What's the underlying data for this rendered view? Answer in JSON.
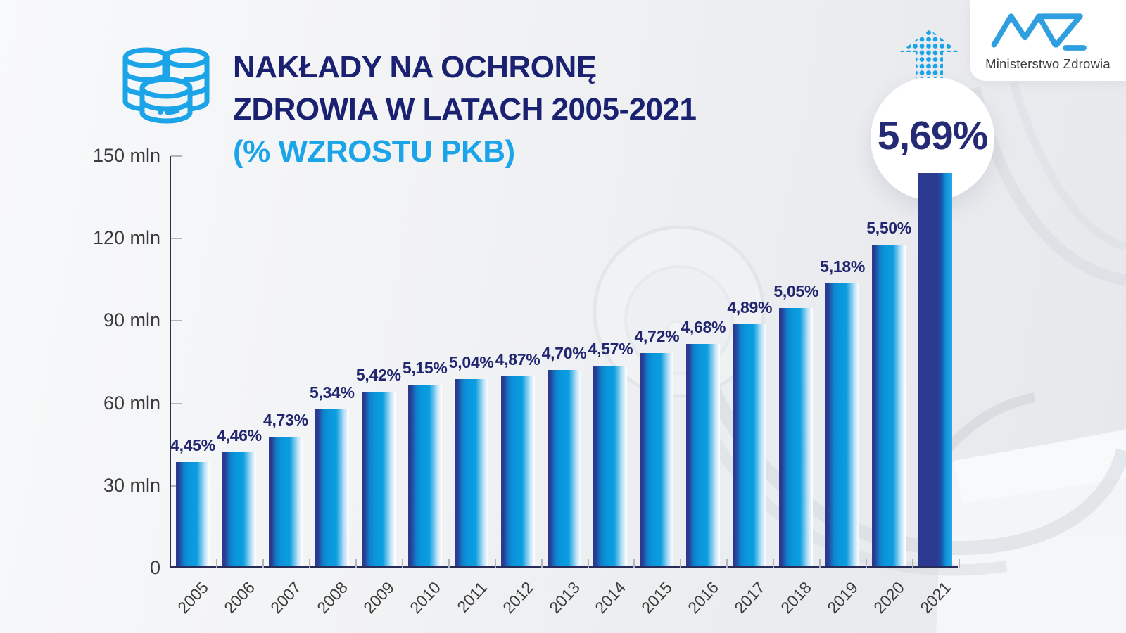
{
  "header": {
    "title_line1": "NAKŁADY NA OCHRONĘ",
    "title_line2": "ZDROWIA W LATACH 2005-2021",
    "subtitle": "(% WZROSTU PKB)"
  },
  "logo": {
    "text": "Ministerstwo Zdrowia"
  },
  "highlight": {
    "value": "5,69%"
  },
  "colors": {
    "navy_title": "#1b2171",
    "bright_blue": "#1ba4e8",
    "bar_navy": "#2b3991",
    "bar_blue": "#0a96dc",
    "label_navy": "#21266f",
    "axis_gray": "#b2b5bb",
    "text_gray": "#3c3c3b"
  },
  "chart_data": {
    "type": "bar",
    "title": "Nakłady na ochronę zdrowia w latach 2005-2021 (% wzrostu PKB)",
    "categories": [
      "2005",
      "2006",
      "2007",
      "2008",
      "2009",
      "2010",
      "2011",
      "2012",
      "2013",
      "2014",
      "2015",
      "2016",
      "2017",
      "2018",
      "2019",
      "2020",
      "2021"
    ],
    "series": [
      {
        "name": "Nakłady na ochronę zdrowia (mln)",
        "values": [
          38,
          41.5,
          47,
          57,
          63.5,
          66,
          68,
          69,
          71.5,
          73,
          77.5,
          81,
          88,
          94,
          103,
          117,
          143
        ]
      }
    ],
    "bar_labels": [
      "4,45%",
      "4,46%",
      "4,73%",
      "5,34%",
      "5,42%",
      "5,15%",
      "5,04%",
      "4,87%",
      "4,70%",
      "4,57%",
      "4,72%",
      "4,68%",
      "4,89%",
      "5,05%",
      "5,18%",
      "5,50%",
      "5,69%"
    ],
    "y_ticks": [
      {
        "value": 0,
        "label": "0"
      },
      {
        "value": 30,
        "label": "30 mln"
      },
      {
        "value": 60,
        "label": "60 mln"
      },
      {
        "value": 90,
        "label": "90 mln"
      },
      {
        "value": 120,
        "label": "120 mln"
      },
      {
        "value": 150,
        "label": "150 mln"
      }
    ],
    "ylim": [
      0,
      150
    ],
    "grid": false,
    "legend": null,
    "highlight_last_in_badge": true
  }
}
